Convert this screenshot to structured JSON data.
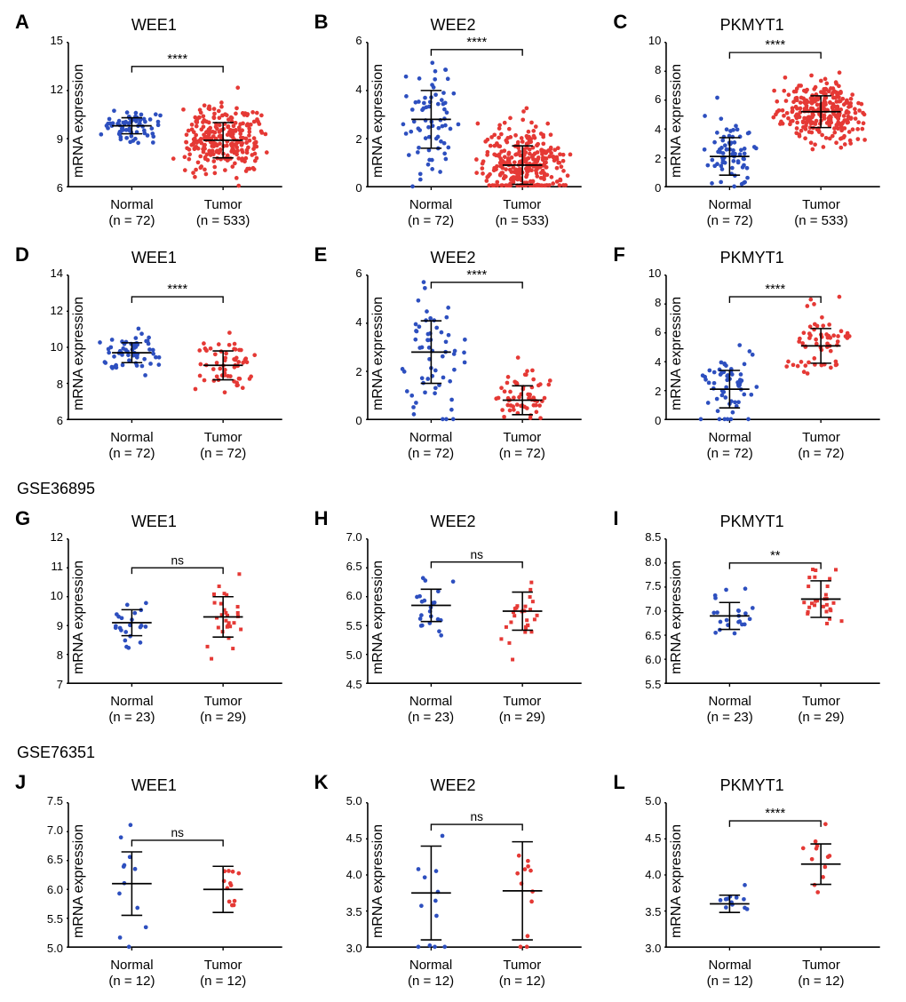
{
  "global": {
    "y_label": "mRNA expression",
    "colors": {
      "normal": "#2d4fbf",
      "tumor": "#e53935",
      "axis": "#000000",
      "bg": "#ffffff"
    },
    "font": {
      "family": "Arial",
      "title_pt": 18,
      "label_pt": 16,
      "tick_pt": 13,
      "letter_pt": 22
    },
    "marker_radius": 2.4,
    "err_cap_w": 12
  },
  "datasets": [
    {
      "id": "tcga_full",
      "label": ""
    },
    {
      "id": "tcga_paired",
      "label": ""
    },
    {
      "id": "gse36895",
      "label": "GSE36895"
    },
    {
      "id": "gse76351",
      "label": "GSE76351"
    }
  ],
  "panels": [
    {
      "letter": "A",
      "title": "WEE1",
      "row": 0,
      "ylim": [
        6,
        15
      ],
      "yticks": [
        6,
        9,
        12,
        15
      ],
      "groups": [
        {
          "name": "Normal",
          "n": 72,
          "color_key": "normal",
          "mean": 9.8,
          "sd": 0.5,
          "n_points": 70,
          "spread": 0.9,
          "shape": "circle"
        },
        {
          "name": "Tumor",
          "n": 533,
          "color_key": "tumor",
          "mean": 8.9,
          "sd": 1.1,
          "n_points": 260,
          "spread": 1.4,
          "shape": "circle"
        }
      ],
      "sig": "****",
      "sig_y": 13.5
    },
    {
      "letter": "B",
      "title": "WEE2",
      "row": 0,
      "ylim": [
        0,
        6
      ],
      "yticks": [
        0,
        2,
        4,
        6
      ],
      "groups": [
        {
          "name": "Normal",
          "n": 72,
          "color_key": "normal",
          "mean": 2.8,
          "sd": 1.2,
          "n_points": 70,
          "spread": 1.0,
          "shape": "circle"
        },
        {
          "name": "Tumor",
          "n": 533,
          "color_key": "tumor",
          "mean": 0.9,
          "sd": 0.8,
          "n_points": 300,
          "spread": 1.4,
          "shape": "circle",
          "floor": 0.05
        }
      ],
      "sig": "****",
      "sig_y": 5.7
    },
    {
      "letter": "C",
      "title": "PKMYT1",
      "row": 0,
      "ylim": [
        0,
        10
      ],
      "yticks": [
        0,
        2,
        4,
        6,
        8,
        10
      ],
      "groups": [
        {
          "name": "Normal",
          "n": 72,
          "color_key": "normal",
          "mean": 2.1,
          "sd": 1.3,
          "n_points": 70,
          "spread": 0.9,
          "shape": "circle"
        },
        {
          "name": "Tumor",
          "n": 533,
          "color_key": "tumor",
          "mean": 5.2,
          "sd": 1.1,
          "n_points": 280,
          "spread": 1.4,
          "shape": "circle"
        }
      ],
      "sig": "****",
      "sig_y": 9.3
    },
    {
      "letter": "D",
      "title": "WEE1",
      "row": 1,
      "ylim": [
        6,
        14
      ],
      "yticks": [
        6,
        8,
        10,
        12,
        14
      ],
      "groups": [
        {
          "name": "Normal",
          "n": 72,
          "color_key": "normal",
          "mean": 9.7,
          "sd": 0.55,
          "n_points": 60,
          "spread": 1.0,
          "shape": "circle"
        },
        {
          "name": "Tumor",
          "n": 72,
          "color_key": "tumor",
          "mean": 9.0,
          "sd": 0.8,
          "n_points": 60,
          "spread": 1.0,
          "shape": "circle"
        }
      ],
      "sig": "****",
      "sig_y": 12.8
    },
    {
      "letter": "E",
      "title": "WEE2",
      "row": 1,
      "ylim": [
        0,
        6
      ],
      "yticks": [
        0,
        2,
        4,
        6
      ],
      "groups": [
        {
          "name": "Normal",
          "n": 72,
          "color_key": "normal",
          "mean": 2.8,
          "sd": 1.3,
          "n_points": 60,
          "spread": 1.0,
          "shape": "circle"
        },
        {
          "name": "Tumor",
          "n": 72,
          "color_key": "tumor",
          "mean": 0.8,
          "sd": 0.6,
          "n_points": 60,
          "spread": 1.0,
          "shape": "circle",
          "floor": 0.05
        }
      ],
      "sig": "****",
      "sig_y": 5.7
    },
    {
      "letter": "F",
      "title": "PKMYT1",
      "row": 1,
      "ylim": [
        0,
        10
      ],
      "yticks": [
        0,
        2,
        4,
        6,
        8,
        10
      ],
      "groups": [
        {
          "name": "Normal",
          "n": 72,
          "color_key": "normal",
          "mean": 2.1,
          "sd": 1.3,
          "n_points": 60,
          "spread": 0.9,
          "shape": "circle"
        },
        {
          "name": "Tumor",
          "n": 72,
          "color_key": "tumor",
          "mean": 5.1,
          "sd": 1.2,
          "n_points": 60,
          "spread": 1.0,
          "shape": "circle"
        }
      ],
      "sig": "****",
      "sig_y": 8.5
    },
    {
      "letter": "G",
      "title": "WEE1",
      "row": 2,
      "ylim": [
        7,
        12
      ],
      "yticks": [
        7,
        8,
        9,
        10,
        11,
        12
      ],
      "groups": [
        {
          "name": "Normal",
          "n": 23,
          "color_key": "normal",
          "mean": 9.1,
          "sd": 0.45,
          "n_points": 22,
          "spread": 0.7,
          "shape": "circle"
        },
        {
          "name": "Tumor",
          "n": 29,
          "color_key": "tumor",
          "mean": 9.3,
          "sd": 0.7,
          "n_points": 28,
          "spread": 0.7,
          "shape": "square"
        }
      ],
      "sig": "ns",
      "sig_y": 11.0
    },
    {
      "letter": "H",
      "title": "WEE2",
      "row": 2,
      "ylim": [
        4.5,
        7.0
      ],
      "yticks": [
        4.5,
        5.0,
        5.5,
        6.0,
        6.5,
        7.0
      ],
      "y_decimals": 1,
      "groups": [
        {
          "name": "Normal",
          "n": 23,
          "color_key": "normal",
          "mean": 5.85,
          "sd": 0.28,
          "n_points": 22,
          "spread": 0.7,
          "shape": "circle"
        },
        {
          "name": "Tumor",
          "n": 29,
          "color_key": "tumor",
          "mean": 5.75,
          "sd": 0.33,
          "n_points": 28,
          "spread": 0.7,
          "shape": "square"
        }
      ],
      "sig": "ns",
      "sig_y": 6.6
    },
    {
      "letter": "I",
      "title": "PKMYT1",
      "row": 2,
      "ylim": [
        5.5,
        8.5
      ],
      "yticks": [
        5.5,
        6.0,
        6.5,
        7.0,
        7.5,
        8.0,
        8.5
      ],
      "y_decimals": 1,
      "groups": [
        {
          "name": "Normal",
          "n": 23,
          "color_key": "normal",
          "mean": 6.9,
          "sd": 0.28,
          "n_points": 22,
          "spread": 0.7,
          "shape": "circle"
        },
        {
          "name": "Tumor",
          "n": 29,
          "color_key": "tumor",
          "mean": 7.25,
          "sd": 0.38,
          "n_points": 28,
          "spread": 0.7,
          "shape": "square"
        }
      ],
      "sig": "**",
      "sig_y": 8.0
    },
    {
      "letter": "J",
      "title": "WEE1",
      "row": 3,
      "ylim": [
        5.0,
        7.5
      ],
      "yticks": [
        5.0,
        5.5,
        6.0,
        6.5,
        7.0,
        7.5
      ],
      "y_decimals": 1,
      "groups": [
        {
          "name": "Normal",
          "n": 12,
          "color_key": "normal",
          "mean": 6.1,
          "sd": 0.55,
          "n_points": 12,
          "spread": 0.55,
          "shape": "circle"
        },
        {
          "name": "Tumor",
          "n": 12,
          "color_key": "tumor",
          "mean": 6.0,
          "sd": 0.4,
          "n_points": 12,
          "spread": 0.6,
          "shape": "circle"
        }
      ],
      "sig": "ns",
      "sig_y": 6.85
    },
    {
      "letter": "K",
      "title": "WEE2",
      "row": 3,
      "ylim": [
        3.0,
        5.0
      ],
      "yticks": [
        3.0,
        3.5,
        4.0,
        4.5,
        5.0
      ],
      "y_decimals": 1,
      "groups": [
        {
          "name": "Normal",
          "n": 12,
          "color_key": "normal",
          "mean": 3.75,
          "sd": 0.65,
          "n_points": 12,
          "spread": 0.55,
          "shape": "circle"
        },
        {
          "name": "Tumor",
          "n": 12,
          "color_key": "tumor",
          "mean": 3.78,
          "sd": 0.68,
          "n_points": 12,
          "spread": 0.55,
          "shape": "circle"
        }
      ],
      "sig": "ns",
      "sig_y": 4.7
    },
    {
      "letter": "L",
      "title": "PKMYT1",
      "row": 3,
      "ylim": [
        3.0,
        5.0
      ],
      "yticks": [
        3.0,
        3.5,
        4.0,
        4.5,
        5.0
      ],
      "y_decimals": 1,
      "groups": [
        {
          "name": "Normal",
          "n": 12,
          "color_key": "normal",
          "mean": 3.6,
          "sd": 0.12,
          "n_points": 12,
          "spread": 0.55,
          "shape": "circle"
        },
        {
          "name": "Tumor",
          "n": 12,
          "color_key": "tumor",
          "mean": 4.15,
          "sd": 0.28,
          "n_points": 12,
          "spread": 0.6,
          "shape": "circle"
        }
      ],
      "sig": "****",
      "sig_y": 4.75
    }
  ]
}
